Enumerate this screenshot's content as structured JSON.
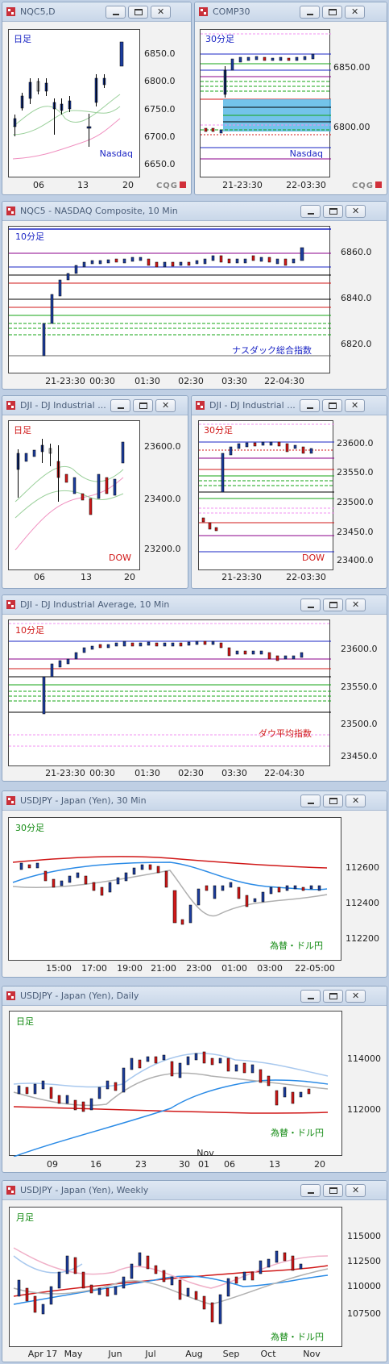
{
  "logo": "CQG",
  "windows": [
    {
      "id": "w1",
      "title": "NQC5,D",
      "period": "日足",
      "period_color": "#1a24c4",
      "footer": "Nasdaq",
      "footer_color": "#1a24c4",
      "y_labels": [
        "6850.0",
        "6800.0",
        "6750.0",
        "6700.0",
        "6650.0"
      ],
      "x_labels": [
        "06",
        "13",
        "20"
      ]
    },
    {
      "id": "w2",
      "title": "COMP30",
      "period": "30分足",
      "period_color": "#1a24c4",
      "footer": "Nasdaq",
      "footer_color": "#1a24c4",
      "y_labels": [
        "6850.00",
        "6800.00"
      ],
      "x_labels": [
        "21-23:30",
        "22-03:30"
      ]
    },
    {
      "id": "w3",
      "title": "NQC5 - NASDAQ Composite, 10 Min",
      "period": "10分足",
      "period_color": "#1a24c4",
      "footer": "ナスダック総合指数",
      "footer_color": "#1a24c4",
      "y_labels": [
        "6860.0",
        "6840.0",
        "6820.0"
      ],
      "x_labels": [
        "21-23:30",
        "00:30",
        "01:30",
        "02:30",
        "03:30",
        "22-04:30"
      ]
    },
    {
      "id": "w4",
      "title": "DJI - DJ Industrial ...",
      "period": "日足",
      "period_color": "#d01818",
      "footer": "DOW",
      "footer_color": "#d01818",
      "y_labels": [
        "23600.0",
        "23400.0",
        "23200.0"
      ],
      "x_labels": [
        "06",
        "13",
        "20"
      ]
    },
    {
      "id": "w5",
      "title": "DJI - DJ Industrial ...",
      "period": "30分足",
      "period_color": "#d01818",
      "footer": "DOW",
      "footer_color": "#d01818",
      "y_labels": [
        "23600.0",
        "23550.0",
        "23500.0",
        "23450.0",
        "23400.0"
      ],
      "x_labels": [
        "21-23:30",
        "22-03:30"
      ]
    },
    {
      "id": "w6",
      "title": "DJI - DJ Industrial Average, 10 Min",
      "period": "10分足",
      "period_color": "#d01818",
      "footer": "ダウ平均指数",
      "footer_color": "#d01818",
      "y_labels": [
        "23600.0",
        "23550.0",
        "23500.0",
        "23450.0"
      ],
      "x_labels": [
        "21-23:30",
        "00:30",
        "01:30",
        "02:30",
        "03:30",
        "22-04:30"
      ]
    },
    {
      "id": "w7",
      "title": "USDJPY - Japan (Yen), 30 Min",
      "period": "30分足",
      "period_color": "#128a12",
      "footer": "為替・ドル円",
      "footer_color": "#128a12",
      "y_labels": [
        "112600",
        "112400",
        "112200"
      ],
      "x_labels": [
        "15:00",
        "17:00",
        "19:00",
        "21:00",
        "23:00",
        "01:00",
        "03:00",
        "22-05:00"
      ]
    },
    {
      "id": "w8",
      "title": "USDJPY - Japan (Yen), Daily",
      "period": "日足",
      "period_color": "#128a12",
      "footer": "為替・ドル円",
      "footer_color": "#128a12",
      "y_labels": [
        "114000",
        "112000"
      ],
      "x_labels": [
        "09",
        "16",
        "23",
        "30",
        "01",
        "06",
        "13",
        "20"
      ],
      "x_sub": "Nov"
    },
    {
      "id": "w9",
      "title": "USDJPY - Japan (Yen), Weekly",
      "period": "月足",
      "period_color": "#128a12",
      "footer": "為替・ドル円",
      "footer_color": "#128a12",
      "y_labels": [
        "115000",
        "112500",
        "110000",
        "107500"
      ],
      "x_labels": [
        "Apr 17",
        "May",
        "Jun",
        "Jul",
        "Aug",
        "Sep",
        "Oct",
        "Nov"
      ]
    }
  ]
}
